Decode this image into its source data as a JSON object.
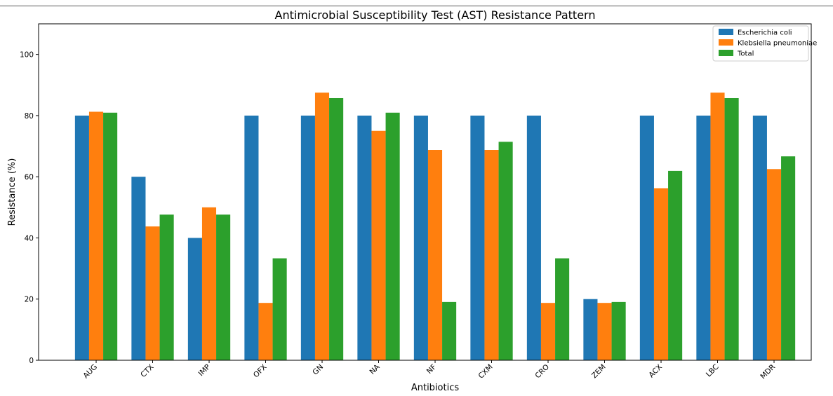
{
  "chart_data": {
    "type": "bar",
    "title": "Antimicrobial Susceptibility Test (AST) Resistance Pattern",
    "xlabel": "Antibiotics",
    "ylabel": "Resistance (%)",
    "ylim": [
      0,
      110
    ],
    "yticks": [
      0,
      20,
      40,
      60,
      80,
      100
    ],
    "grid": false,
    "legend_position": "top-right",
    "categories": [
      "AUG",
      "CTX",
      "IMP",
      "OFX",
      "GN",
      "NA",
      "NF",
      "CXM",
      "CRO",
      "ZEM",
      "ACX",
      "LBC",
      "MDR"
    ],
    "series": [
      {
        "name": "Escherichia coli",
        "color": "#1f77b4",
        "values": [
          80,
          60,
          40,
          80,
          80,
          80,
          80,
          80,
          80,
          20,
          80,
          80,
          80
        ]
      },
      {
        "name": "Klebsiella pneumoniae",
        "color": "#ff7f0e",
        "values": [
          81.25,
          43.75,
          50,
          18.75,
          87.5,
          75,
          68.75,
          68.75,
          18.75,
          18.75,
          56.25,
          87.5,
          62.5
        ]
      },
      {
        "name": "Total",
        "color": "#2ca02c",
        "values": [
          80.95,
          47.62,
          47.62,
          33.33,
          85.71,
          80.95,
          19.05,
          71.43,
          33.33,
          19.05,
          61.9,
          85.71,
          66.67
        ]
      }
    ]
  }
}
